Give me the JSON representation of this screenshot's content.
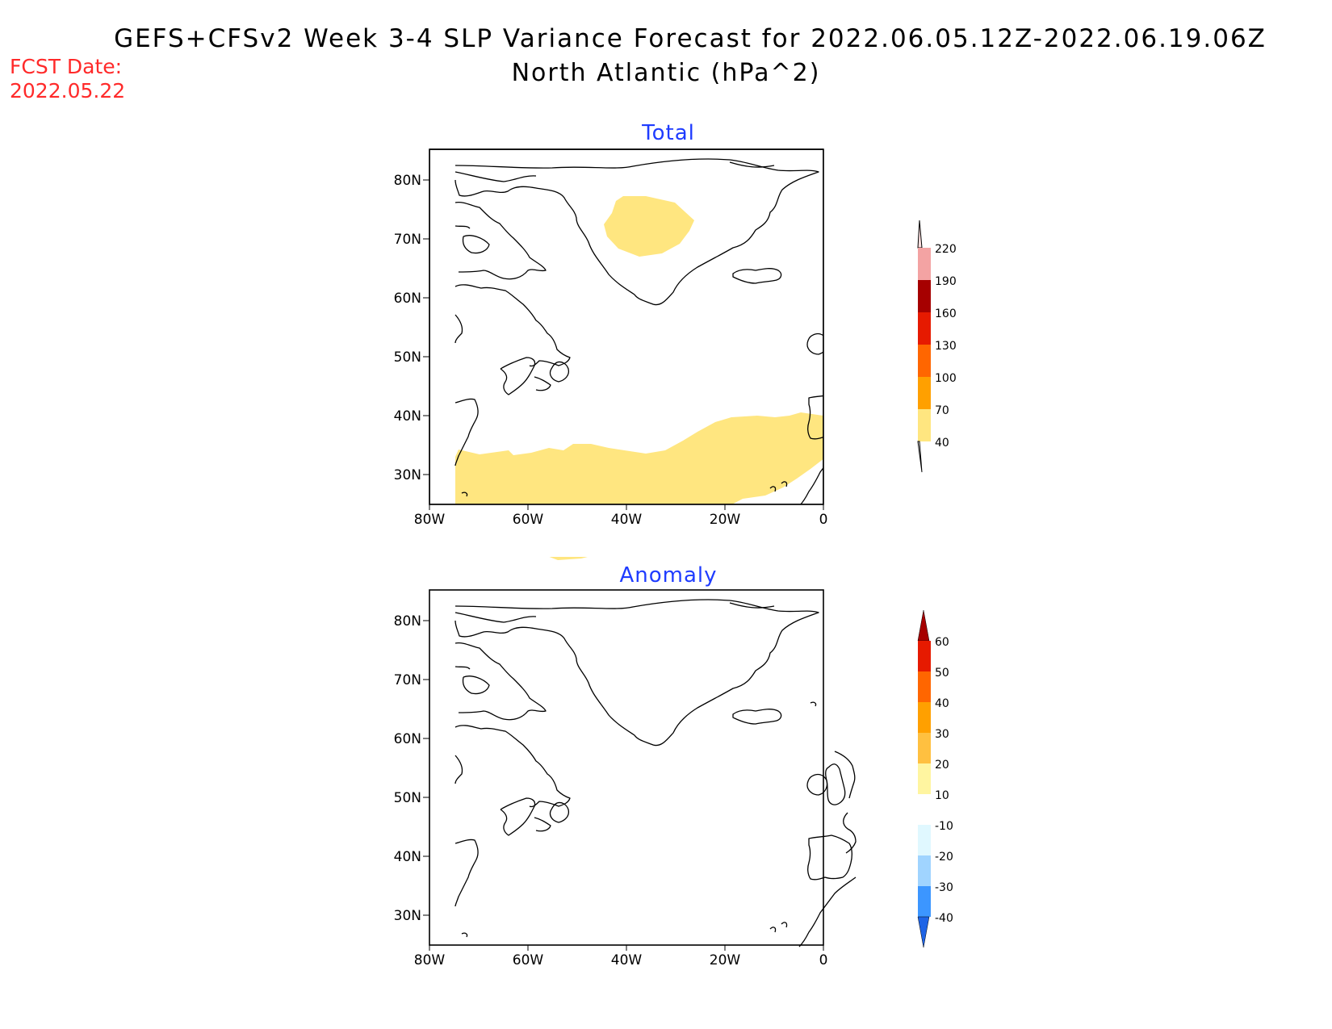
{
  "title": {
    "line1": "GEFS+CFSv2 Week 3-4 SLP Variance Forecast for 2022.06.05.12Z-2022.06.19.06Z",
    "line2": "North Atlantic (hPa^2)"
  },
  "forecast_date": {
    "label": "FCST Date:",
    "value": "2022.05.22"
  },
  "panels": [
    {
      "title": "Total",
      "lat_ticks": [
        "80N",
        "70N",
        "60N",
        "50N",
        "40N",
        "30N"
      ],
      "lon_ticks": [
        "80W",
        "60W",
        "40W",
        "20W",
        "0"
      ],
      "colorbar": {
        "levels": [
          "40",
          "70",
          "100",
          "130",
          "160",
          "190",
          "220"
        ],
        "colors": [
          "#ffe680",
          "#ffa000",
          "#ff6600",
          "#e61a00",
          "#a60000",
          "#f3a3a3",
          "#ffe0e0"
        ]
      },
      "shaded": [
        {
          "category": "40-70",
          "color": "#ffe680"
        }
      ]
    },
    {
      "title": "Anomaly",
      "lat_ticks": [
        "80N",
        "70N",
        "60N",
        "50N",
        "40N",
        "30N"
      ],
      "lon_ticks": [
        "80W",
        "60W",
        "40W",
        "20W",
        "0"
      ],
      "colorbar": {
        "levels": [
          "60",
          "50",
          "40",
          "30",
          "20",
          "10",
          "-10",
          "-20",
          "-30",
          "-40"
        ],
        "colors": [
          "#a60000",
          "#e61a00",
          "#ff6600",
          "#ffa000",
          "#ffc040",
          "#fff5a0",
          "#ffffff",
          "#e0f8ff",
          "#a0d4ff",
          "#3c96ff",
          "#1e64e6"
        ]
      },
      "shaded": []
    }
  ]
}
